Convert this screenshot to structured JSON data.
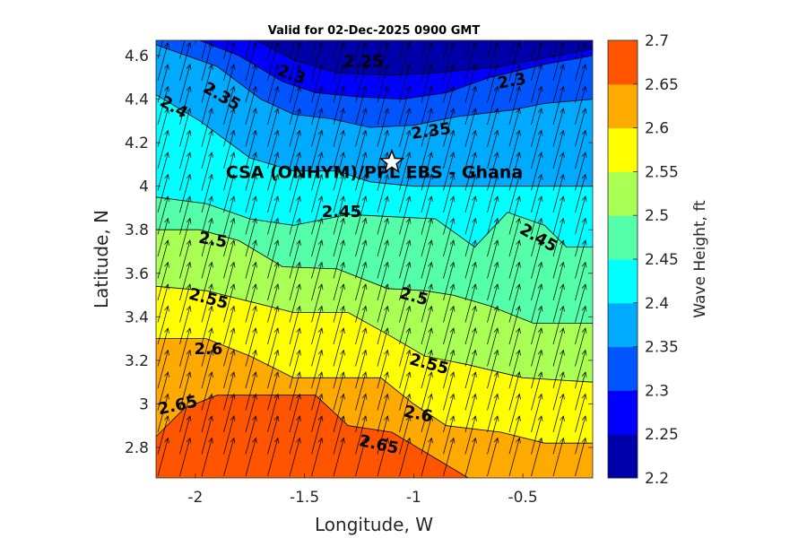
{
  "chart_data": {
    "type": "heatmap",
    "subtype": "filled-contour-with-wind-arrows",
    "title": "Valid for 02-Dec-2025 0900 GMT",
    "xlabel": "Longitude, W",
    "ylabel": "Latitude, N",
    "xlim": [
      -2.18,
      -0.18
    ],
    "ylim": [
      2.66,
      4.67
    ],
    "xticks": [
      -2,
      -1.5,
      -1,
      -0.5
    ],
    "xtick_labels": [
      "-2",
      "-1.5",
      "-1",
      "-0.5"
    ],
    "yticks": [
      2.8,
      3.0,
      3.2,
      3.4,
      3.6,
      3.8,
      4.0,
      4.2,
      4.4,
      4.6
    ],
    "ytick_labels": [
      "2.8",
      "3",
      "3.2",
      "3.4",
      "3.6",
      "3.8",
      "4",
      "4.2",
      "4.4",
      "4.6"
    ],
    "colorbar": {
      "label": "Wave Height, ft",
      "levels": [
        2.2,
        2.25,
        2.3,
        2.35,
        2.4,
        2.45,
        2.5,
        2.55,
        2.6,
        2.65,
        2.7
      ],
      "tick_labels": [
        "2.2",
        "2.25",
        "2.3",
        "2.35",
        "2.4",
        "2.45",
        "2.5",
        "2.55",
        "2.6",
        "2.65",
        "2.7"
      ],
      "colors": [
        "#0000AA",
        "#0000FF",
        "#0055FF",
        "#00AAFF",
        "#00FFFF",
        "#55FFAA",
        "#AAFF55",
        "#FFFF00",
        "#FFAA00",
        "#FF5500"
      ]
    },
    "contours": [
      {
        "level": 2.25,
        "points": [
          [
            -1.72,
            4.67
          ],
          [
            -1.55,
            4.58
          ],
          [
            -1.35,
            4.52
          ],
          [
            -1.1,
            4.51
          ],
          [
            -0.9,
            4.52
          ],
          [
            -0.6,
            4.55
          ],
          [
            -0.18,
            4.63
          ]
        ]
      },
      {
        "level": 2.3,
        "points": [
          [
            -1.98,
            4.67
          ],
          [
            -1.8,
            4.6
          ],
          [
            -1.6,
            4.48
          ],
          [
            -1.45,
            4.43
          ],
          [
            -1.25,
            4.41
          ],
          [
            -1.05,
            4.4
          ],
          [
            -0.85,
            4.43
          ],
          [
            -0.65,
            4.5
          ],
          [
            -0.4,
            4.56
          ],
          [
            -0.18,
            4.6
          ]
        ]
      },
      {
        "level": 2.35,
        "points": [
          [
            -2.18,
            4.65
          ],
          [
            -1.9,
            4.55
          ],
          [
            -1.7,
            4.4
          ],
          [
            -1.55,
            4.33
          ],
          [
            -1.38,
            4.31
          ],
          [
            -1.2,
            4.27
          ],
          [
            -1.0,
            4.28
          ],
          [
            -0.8,
            4.32
          ],
          [
            -0.55,
            4.35
          ],
          [
            -0.4,
            4.38
          ],
          [
            -0.18,
            4.4
          ]
        ]
      },
      {
        "level": 2.4,
        "points": [
          [
            -2.18,
            4.42
          ],
          [
            -1.98,
            4.3
          ],
          [
            -1.75,
            4.13
          ],
          [
            -1.55,
            4.07
          ],
          [
            -1.35,
            4.07
          ],
          [
            -1.2,
            4.02
          ],
          [
            -1.0,
            4.0
          ],
          [
            -0.8,
            4.0
          ],
          [
            -0.6,
            4.0
          ],
          [
            -0.38,
            4.0
          ],
          [
            -0.18,
            4.0
          ]
        ]
      },
      {
        "level": 2.45,
        "points": [
          [
            -2.18,
            3.95
          ],
          [
            -1.95,
            3.92
          ],
          [
            -1.75,
            3.85
          ],
          [
            -1.55,
            3.82
          ],
          [
            -1.3,
            3.87
          ],
          [
            -1.1,
            3.86
          ],
          [
            -0.9,
            3.85
          ],
          [
            -0.72,
            3.72
          ],
          [
            -0.57,
            3.88
          ],
          [
            -0.4,
            3.82
          ],
          [
            -0.3,
            3.72
          ],
          [
            -0.18,
            3.72
          ]
        ]
      },
      {
        "level": 2.5,
        "points": [
          [
            -2.18,
            3.8
          ],
          [
            -1.98,
            3.8
          ],
          [
            -1.8,
            3.75
          ],
          [
            -1.6,
            3.63
          ],
          [
            -1.35,
            3.62
          ],
          [
            -1.12,
            3.53
          ],
          [
            -0.95,
            3.52
          ],
          [
            -0.82,
            3.5
          ],
          [
            -0.65,
            3.45
          ],
          [
            -0.45,
            3.37
          ],
          [
            -0.18,
            3.37
          ]
        ]
      },
      {
        "level": 2.55,
        "points": [
          [
            -2.18,
            3.54
          ],
          [
            -1.95,
            3.52
          ],
          [
            -1.75,
            3.47
          ],
          [
            -1.55,
            3.42
          ],
          [
            -1.3,
            3.42
          ],
          [
            -1.12,
            3.32
          ],
          [
            -0.95,
            3.22
          ],
          [
            -0.75,
            3.18
          ],
          [
            -0.5,
            3.12
          ],
          [
            -0.18,
            3.1
          ]
        ]
      },
      {
        "level": 2.6,
        "points": [
          [
            -2.18,
            3.3
          ],
          [
            -1.95,
            3.3
          ],
          [
            -1.75,
            3.22
          ],
          [
            -1.55,
            3.12
          ],
          [
            -1.4,
            3.12
          ],
          [
            -1.15,
            3.12
          ],
          [
            -1.0,
            3.0
          ],
          [
            -0.85,
            2.9
          ],
          [
            -0.6,
            2.87
          ],
          [
            -0.4,
            2.82
          ],
          [
            -0.18,
            2.82
          ]
        ]
      },
      {
        "level": 2.65,
        "points": [
          [
            -2.18,
            2.85
          ],
          [
            -2.05,
            2.98
          ],
          [
            -1.9,
            3.04
          ],
          [
            -1.7,
            3.04
          ],
          [
            -1.45,
            3.04
          ],
          [
            -1.3,
            2.9
          ],
          [
            -1.1,
            2.87
          ],
          [
            -0.9,
            2.75
          ],
          [
            -0.75,
            2.66
          ]
        ]
      }
    ],
    "contour_labels": [
      {
        "text": "2.25",
        "lon": -1.23,
        "lat": 4.57,
        "rotate": 0
      },
      {
        "text": "2.3",
        "lon": -1.56,
        "lat": 4.51,
        "rotate": 20
      },
      {
        "text": "2.3",
        "lon": -0.55,
        "lat": 4.48,
        "rotate": -10
      },
      {
        "text": "2.35",
        "lon": -1.88,
        "lat": 4.41,
        "rotate": 30
      },
      {
        "text": "2.35",
        "lon": -0.92,
        "lat": 4.25,
        "rotate": -8
      },
      {
        "text": "2.4",
        "lon": -2.1,
        "lat": 4.36,
        "rotate": 30
      },
      {
        "text": "2.45",
        "lon": -1.33,
        "lat": 3.88,
        "rotate": 0
      },
      {
        "text": "2.45",
        "lon": -0.43,
        "lat": 3.76,
        "rotate": 30
      },
      {
        "text": "2.5",
        "lon": -1.92,
        "lat": 3.75,
        "rotate": 10
      },
      {
        "text": "2.5",
        "lon": -1.0,
        "lat": 3.49,
        "rotate": 15
      },
      {
        "text": "2.55",
        "lon": -1.94,
        "lat": 3.48,
        "rotate": 15
      },
      {
        "text": "2.55",
        "lon": -0.93,
        "lat": 3.18,
        "rotate": 15
      },
      {
        "text": "2.6",
        "lon": -1.94,
        "lat": 3.25,
        "rotate": 0
      },
      {
        "text": "2.6",
        "lon": -0.98,
        "lat": 2.95,
        "rotate": 12
      },
      {
        "text": "2.65",
        "lon": -2.08,
        "lat": 2.99,
        "rotate": -12
      },
      {
        "text": "2.65",
        "lon": -1.16,
        "lat": 2.81,
        "rotate": 12
      }
    ],
    "wind_arrow_direction_deg": 75,
    "annotations": [
      {
        "text": "CSA (ONHYM)/PPL EBS  - Ghana",
        "lon": -1.18,
        "lat": 4.06
      },
      {
        "marker": "star",
        "lon": -1.1,
        "lat": 4.11
      }
    ]
  }
}
